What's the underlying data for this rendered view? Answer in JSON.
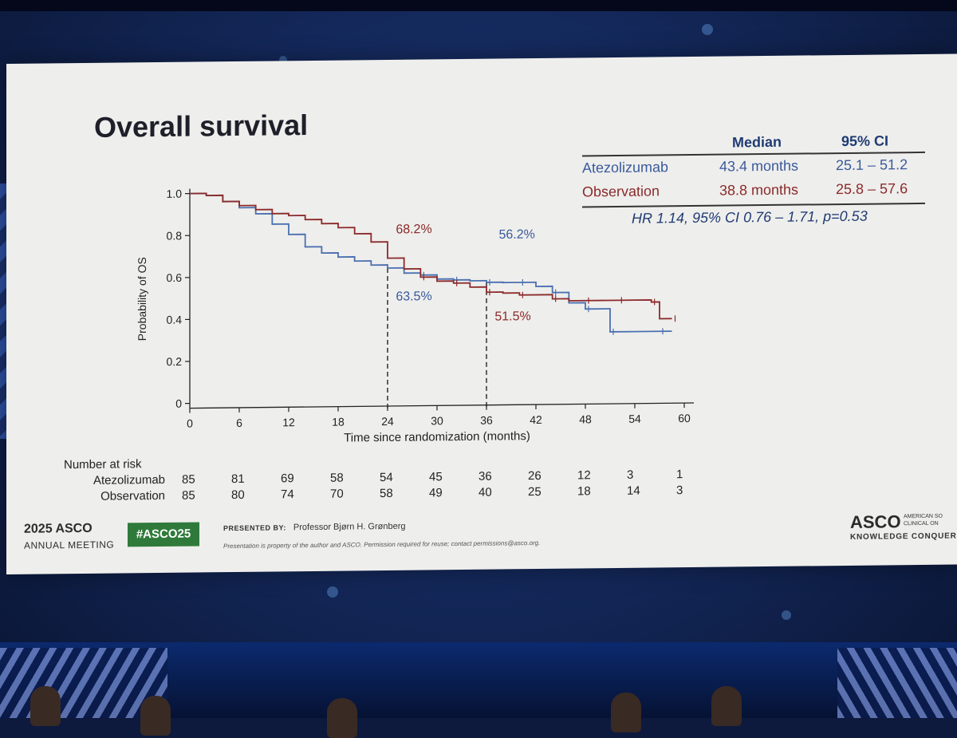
{
  "slide": {
    "title": "Overall survival",
    "stats_table": {
      "headers": [
        "Median",
        "95% CI"
      ],
      "rows": [
        {
          "name": "Atezolizumab",
          "median": "43.4 months",
          "ci": "25.1 – 51.2",
          "color": "#3a5a9c"
        },
        {
          "name": "Observation",
          "median": "38.8 months",
          "ci": "25.8 – 57.6",
          "color": "#8b2a2a"
        }
      ],
      "hr": "HR 1.14, 95% CI 0.76 – 1.71, p=0.53"
    },
    "risk_table": {
      "title": "Number at risk",
      "rows": [
        {
          "name": "Atezolizumab",
          "values": [
            "85",
            "81",
            "69",
            "58",
            "54",
            "45",
            "36",
            "26",
            "12",
            "3",
            "1"
          ]
        },
        {
          "name": "Observation",
          "values": [
            "85",
            "80",
            "74",
            "70",
            "58",
            "49",
            "40",
            "25",
            "18",
            "14",
            "3"
          ]
        }
      ]
    },
    "footer": {
      "year": "2025",
      "org": "ASCO",
      "meeting": "ANNUAL MEETING",
      "hashtag": "#ASCO25",
      "presented_by_label": "PRESENTED BY:",
      "presenter": "Professor Bjørn H. Grønberg",
      "disclaimer": "Presentation is property of the author and ASCO. Permission required for reuse; contact permissions@asco.org.",
      "logo": "ASCO",
      "logo_sub_1": "AMERICAN SO",
      "logo_sub_2": "CLINICAL ON",
      "logo_tagline": "KNOWLEDGE CONQUERS C"
    }
  },
  "chart_data": {
    "type": "line",
    "title": "",
    "xlabel": "Time since randomization (months)",
    "ylabel": "Probability of OS",
    "xlim": [
      0,
      60
    ],
    "ylim": [
      0,
      1.0
    ],
    "xticks": [
      0,
      6,
      12,
      18,
      24,
      30,
      36,
      42,
      48,
      54,
      60
    ],
    "yticks": [
      0,
      0.2,
      0.4,
      0.6,
      0.8,
      1.0
    ],
    "ytick_labels": [
      "0",
      "0.2",
      "0.4",
      "0.6",
      "0.8",
      "1.0"
    ],
    "grid": false,
    "series": [
      {
        "name": "Atezolizumab",
        "color": "#4a6fb0",
        "x": [
          0,
          2,
          4,
          6,
          8,
          10,
          12,
          14,
          16,
          18,
          20,
          22,
          24,
          26,
          28,
          30,
          32,
          34,
          36,
          38,
          40,
          42,
          44,
          46,
          48,
          50,
          51,
          54,
          57,
          58.5
        ],
        "y": [
          1.0,
          0.99,
          0.96,
          0.93,
          0.9,
          0.85,
          0.8,
          0.74,
          0.71,
          0.69,
          0.67,
          0.65,
          0.635,
          0.61,
          0.6,
          0.58,
          0.575,
          0.57,
          0.562,
          0.56,
          0.56,
          0.54,
          0.51,
          0.46,
          0.43,
          0.43,
          0.32,
          0.32,
          0.32,
          0.32
        ]
      },
      {
        "name": "Observation",
        "color": "#8b2a2a",
        "x": [
          0,
          2,
          4,
          6,
          8,
          10,
          12,
          14,
          16,
          18,
          20,
          22,
          24,
          26,
          28,
          30,
          32,
          34,
          36,
          38,
          40,
          42,
          44,
          46,
          48,
          50,
          52,
          54,
          56,
          57,
          58.5
        ],
        "y": [
          1.0,
          0.99,
          0.96,
          0.94,
          0.92,
          0.9,
          0.89,
          0.87,
          0.85,
          0.83,
          0.8,
          0.76,
          0.682,
          0.63,
          0.59,
          0.57,
          0.56,
          0.54,
          0.515,
          0.51,
          0.5,
          0.5,
          0.48,
          0.47,
          0.47,
          0.47,
          0.47,
          0.47,
          0.46,
          0.38,
          0.38
        ]
      }
    ],
    "reference_lines": [
      24,
      36
    ],
    "annotations": [
      {
        "text": "68.2%",
        "x": 25,
        "y": 0.8,
        "color": "#8b2a2a"
      },
      {
        "text": "56.2%",
        "x": 37.5,
        "y": 0.77,
        "color": "#3a5a9c"
      },
      {
        "text": "63.5%",
        "x": 25,
        "y": 0.48,
        "color": "#3a5a9c"
      },
      {
        "text": "51.5%",
        "x": 37,
        "y": 0.38,
        "color": "#8b2a2a"
      }
    ]
  }
}
